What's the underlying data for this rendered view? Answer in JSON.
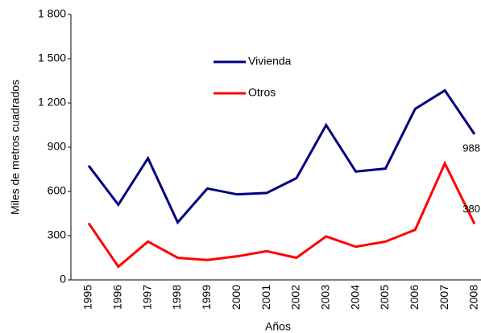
{
  "chart_data": {
    "type": "line",
    "x_label": "Años",
    "y_label": "Miles de metros cuadrados",
    "categories": [
      "1995",
      "1996",
      "1997",
      "1998",
      "1999",
      "2000",
      "2001",
      "2002",
      "2003",
      "2004",
      "2005",
      "2006",
      "2007",
      "2008"
    ],
    "series": [
      {
        "name": "Vivienda",
        "color": "#000080",
        "values": [
          775,
          510,
          825,
          390,
          620,
          580,
          590,
          690,
          1050,
          735,
          755,
          1160,
          1285,
          988
        ]
      },
      {
        "name": "Otros",
        "color": "#ff0000",
        "values": [
          385,
          90,
          260,
          150,
          135,
          160,
          195,
          150,
          295,
          225,
          260,
          340,
          790,
          380
        ]
      }
    ],
    "ylim": [
      0,
      1800
    ],
    "yticks": [
      0,
      300,
      600,
      900,
      {
        "value": 1200,
        "label": "1 200"
      },
      {
        "value": 1500,
        "label": "1 500"
      },
      {
        "value": 1800,
        "label": "1 800"
      }
    ],
    "grid": false
  }
}
